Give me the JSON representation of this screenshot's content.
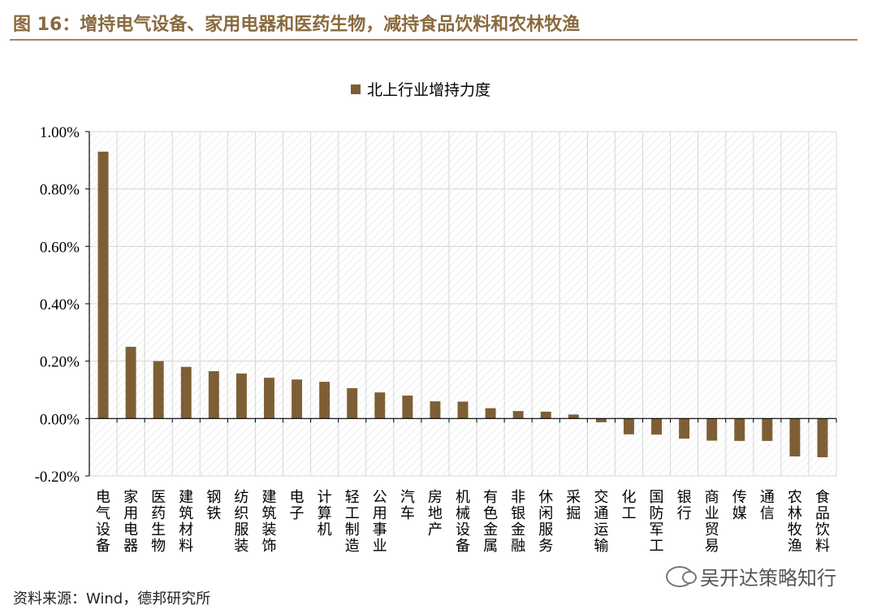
{
  "figure": {
    "title": "图 16：增持电气设备、家用电器和医药生物，减持食品饮料和农林牧渔",
    "source": "资料来源：Wind，德邦研究所",
    "watermark": "吴开达策略知行",
    "accent_color": "#8a6a3f"
  },
  "chart_data": {
    "type": "bar",
    "title": "",
    "xlabel": "",
    "ylabel": "",
    "legend": {
      "entries": [
        "北上行业增持力度"
      ],
      "placement": "top-center"
    },
    "categories": [
      "电气设备",
      "家用电器",
      "医药生物",
      "建筑材料",
      "钢铁",
      "纺织服装",
      "建筑装饰",
      "电子",
      "计算机",
      "轻工制造",
      "公用事业",
      "汽车",
      "房地产",
      "机械设备",
      "有色金属",
      "非银金融",
      "休闲服务",
      "采掘",
      "交通运输",
      "化工",
      "国防军工",
      "银行",
      "商业贸易",
      "传媒",
      "通信",
      "农林牧渔",
      "食品饮料"
    ],
    "series": [
      {
        "name": "北上行业增持力度",
        "color": "#7e5f35",
        "values": [
          0.0093,
          0.0025,
          0.002,
          0.0018,
          0.00165,
          0.00157,
          0.00142,
          0.00136,
          0.00128,
          0.00106,
          0.00091,
          0.0008,
          0.0006,
          0.00059,
          0.00036,
          0.00026,
          0.00024,
          0.00014,
          -0.00013,
          -0.00055,
          -0.00056,
          -0.0007,
          -0.00077,
          -0.00078,
          -0.00078,
          -0.00132,
          -0.00135
        ]
      }
    ],
    "ylim": [
      -0.002,
      0.01
    ],
    "yticks": [
      -0.002,
      0.0,
      0.002,
      0.004,
      0.006,
      0.008,
      0.01
    ],
    "ytick_labels": [
      "-0.20%",
      "0.00%",
      "0.20%",
      "0.40%",
      "0.60%",
      "0.80%",
      "1.00%"
    ],
    "grid": true
  }
}
